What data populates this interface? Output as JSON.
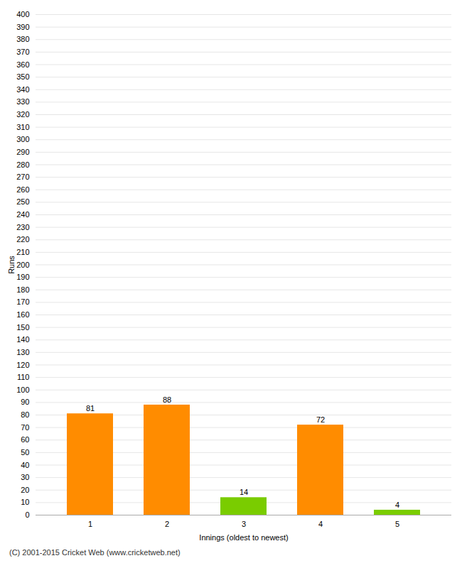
{
  "chart_data": {
    "type": "bar",
    "xlabel": "Innings (oldest to newest)",
    "ylabel": "Runs",
    "categories": [
      "1",
      "2",
      "3",
      "4",
      "5"
    ],
    "values": [
      81,
      88,
      14,
      72,
      4
    ],
    "colors": [
      "#ff8c00",
      "#ff8c00",
      "#7acc00",
      "#ff8c00",
      "#7acc00"
    ],
    "ylim": [
      0,
      400
    ],
    "yticks": [
      0,
      10,
      20,
      30,
      40,
      50,
      60,
      70,
      80,
      90,
      100,
      110,
      120,
      130,
      140,
      150,
      160,
      170,
      180,
      190,
      200,
      210,
      220,
      230,
      240,
      250,
      260,
      270,
      280,
      290,
      300,
      310,
      320,
      330,
      340,
      350,
      360,
      370,
      380,
      390,
      400
    ],
    "grid": true,
    "data_labels": true,
    "footer": "(C) 2001-2015 Cricket Web (www.cricketweb.net)"
  }
}
